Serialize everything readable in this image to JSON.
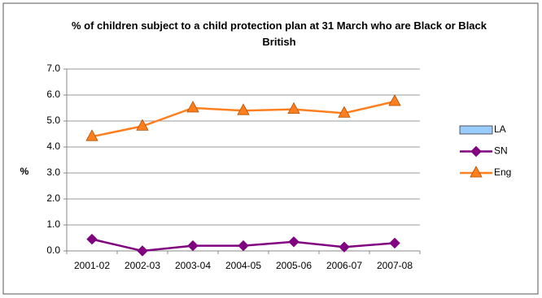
{
  "chart_data": {
    "type": "line",
    "title": "% of children subject to a child protection plan at 31 March who are Black or Black British",
    "y_label": "%",
    "categories": [
      "2001-02",
      "2002-03",
      "2003-04",
      "2004-05",
      "2005-06",
      "2006-07",
      "2007-08"
    ],
    "series": [
      {
        "name": "LA",
        "type": "bar",
        "color": "#99ccff",
        "values": [
          null,
          null,
          null,
          null,
          null,
          null,
          null
        ]
      },
      {
        "name": "SN",
        "marker": "diamond",
        "color": "#800080",
        "values": [
          0.45,
          0.0,
          0.2,
          0.2,
          0.35,
          0.15,
          0.3
        ]
      },
      {
        "name": "Eng",
        "marker": "triangle",
        "color": "#ff7f1f",
        "values": [
          4.4,
          4.8,
          5.5,
          5.4,
          5.45,
          5.3,
          5.75
        ]
      }
    ],
    "ylim": [
      0,
      7
    ],
    "yticks": [
      {
        "value": 0,
        "label": "0.0"
      },
      {
        "value": 1,
        "label": "1.0"
      },
      {
        "value": 2,
        "label": "2.0"
      },
      {
        "value": 3,
        "label": "3.0"
      },
      {
        "value": 4,
        "label": "4.0"
      },
      {
        "value": 5,
        "label": "5.0"
      },
      {
        "value": 6,
        "label": "6.0"
      },
      {
        "value": 7,
        "label": "7.0"
      }
    ],
    "grid": true,
    "legend": "right"
  }
}
